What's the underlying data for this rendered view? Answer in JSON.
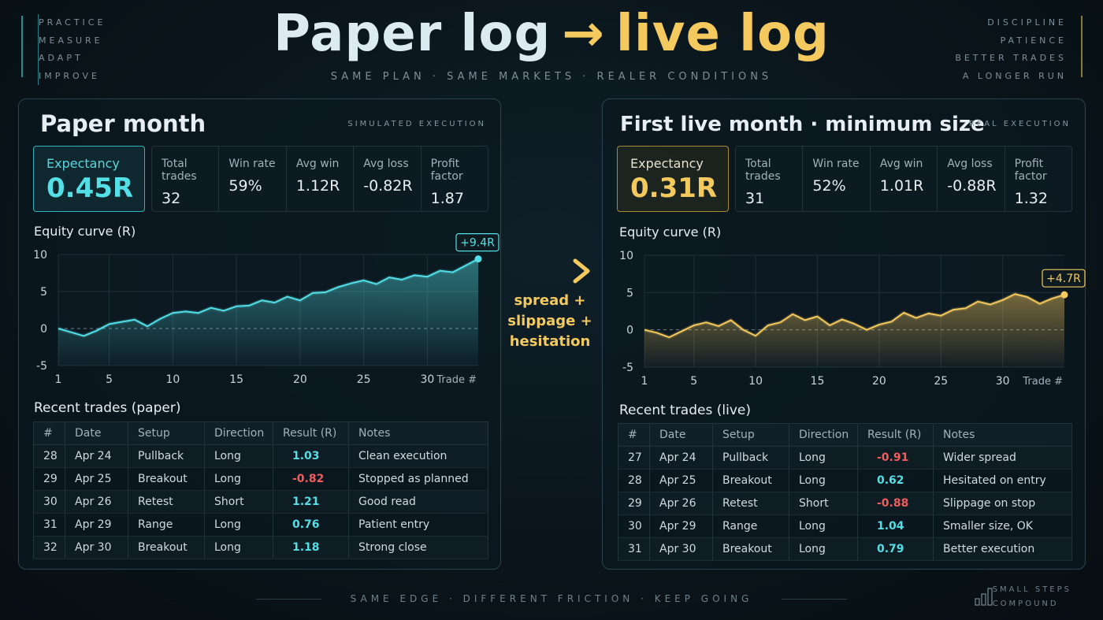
{
  "header": {
    "left_words": [
      "PRACTICE",
      "MEASURE",
      "ADAPT",
      "IMPROVE"
    ],
    "right_words": [
      "DISCIPLINE",
      "PATIENCE",
      "BETTER TRADES",
      "A LONGER RUN"
    ],
    "title_left": "Paper log",
    "title_arrow": "→",
    "title_right": "live log",
    "subtitle": "SAME PLAN · SAME MARKETS · REALER CONDITIONS"
  },
  "paper": {
    "title": "Paper month",
    "tag": "SIMULATED EXECUTION",
    "expectancy_label": "Expectancy",
    "expectancy": "0.45R",
    "stats": [
      {
        "label": "Total trades",
        "value": "32"
      },
      {
        "label": "Win rate",
        "value": "59%"
      },
      {
        "label": "Avg win",
        "value": "1.12R"
      },
      {
        "label": "Avg loss",
        "value": "-0.82R"
      },
      {
        "label": "Profit factor",
        "value": "1.87"
      }
    ],
    "equity_label": "Equity curve (R)",
    "trades_label": "Recent trades (paper)",
    "columns": [
      "#",
      "Date",
      "Setup",
      "Direction",
      "Result (R)",
      "Notes"
    ],
    "trades": [
      {
        "n": "28",
        "date": "Apr 24",
        "setup": "Pullback",
        "dir": "Long",
        "result": "1.03",
        "notes": "Clean execution"
      },
      {
        "n": "29",
        "date": "Apr 25",
        "setup": "Breakout",
        "dir": "Long",
        "result": "-0.82",
        "notes": "Stopped as planned"
      },
      {
        "n": "30",
        "date": "Apr 26",
        "setup": "Retest",
        "dir": "Short",
        "result": "1.21",
        "notes": "Good read"
      },
      {
        "n": "31",
        "date": "Apr 29",
        "setup": "Range",
        "dir": "Long",
        "result": "0.76",
        "notes": "Patient entry"
      },
      {
        "n": "32",
        "date": "Apr 30",
        "setup": "Breakout",
        "dir": "Long",
        "result": "1.18",
        "notes": "Strong close"
      }
    ]
  },
  "live": {
    "title": "First live month · minimum size",
    "tag": "REAL EXECUTION",
    "expectancy_label": "Expectancy",
    "expectancy": "0.31R",
    "stats": [
      {
        "label": "Total trades",
        "value": "31"
      },
      {
        "label": "Win rate",
        "value": "52%"
      },
      {
        "label": "Avg win",
        "value": "1.01R"
      },
      {
        "label": "Avg loss",
        "value": "-0.88R"
      },
      {
        "label": "Profit factor",
        "value": "1.32"
      }
    ],
    "equity_label": "Equity curve (R)",
    "trades_label": "Recent trades (live)",
    "columns": [
      "#",
      "Date",
      "Setup",
      "Direction",
      "Result (R)",
      "Notes"
    ],
    "trades": [
      {
        "n": "27",
        "date": "Apr 24",
        "setup": "Pullback",
        "dir": "Long",
        "result": "-0.91",
        "notes": "Wider spread"
      },
      {
        "n": "28",
        "date": "Apr 25",
        "setup": "Breakout",
        "dir": "Long",
        "result": "0.62",
        "notes": "Hesitated on entry"
      },
      {
        "n": "29",
        "date": "Apr 26",
        "setup": "Retest",
        "dir": "Short",
        "result": "-0.88",
        "notes": "Slippage on stop"
      },
      {
        "n": "30",
        "date": "Apr 29",
        "setup": "Range",
        "dir": "Long",
        "result": "1.04",
        "notes": "Smaller size, OK"
      },
      {
        "n": "31",
        "date": "Apr 30",
        "setup": "Breakout",
        "dir": "Long",
        "result": "0.79",
        "notes": "Better execution"
      }
    ]
  },
  "middle": {
    "friction_lines": [
      "spread +",
      "slippage +",
      "hesitation"
    ]
  },
  "footer": {
    "text": "SAME EDGE · DIFFERENT FRICTION · KEEP GOING",
    "small_steps": [
      "SMALL STEPS",
      "COMPOUND"
    ]
  },
  "colors": {
    "paper_accent": "#53dfe6",
    "live_accent": "#f4c95d",
    "negative": "#f25c5c"
  },
  "chart_data": [
    {
      "type": "line",
      "series_key": "paper",
      "xlabel": "Trade #",
      "ylabel": "",
      "xlim": [
        1,
        34
      ],
      "ylim": [
        -5,
        10
      ],
      "x_ticks": [
        1,
        5,
        10,
        15,
        20,
        25,
        30
      ],
      "y_ticks": [
        -5,
        0,
        5,
        10
      ],
      "end_label": "+9.4R",
      "x": [
        1,
        2,
        3,
        4,
        5,
        6,
        7,
        8,
        9,
        10,
        11,
        12,
        13,
        14,
        15,
        16,
        17,
        18,
        19,
        20,
        21,
        22,
        23,
        24,
        25,
        26,
        27,
        28,
        29,
        30,
        31,
        32,
        33,
        34
      ],
      "values": [
        0,
        -0.5,
        -1,
        -0.3,
        0.6,
        0.9,
        1.2,
        0.3,
        1.3,
        2.1,
        2.3,
        2.1,
        2.8,
        2.4,
        3.0,
        3.1,
        3.8,
        3.5,
        4.3,
        3.8,
        4.8,
        4.9,
        5.6,
        6.1,
        6.5,
        6.0,
        6.9,
        6.6,
        7.2,
        7.0,
        7.8,
        7.6,
        8.5,
        9.4
      ]
    },
    {
      "type": "line",
      "series_key": "live",
      "xlabel": "Trade #",
      "ylabel": "",
      "xlim": [
        1,
        35
      ],
      "ylim": [
        -5,
        10
      ],
      "x_ticks": [
        1,
        5,
        10,
        15,
        20,
        25,
        30
      ],
      "y_ticks": [
        -5,
        0,
        5,
        10
      ],
      "end_label": "+4.7R",
      "x": [
        1,
        2,
        3,
        4,
        5,
        6,
        7,
        8,
        9,
        10,
        11,
        12,
        13,
        14,
        15,
        16,
        17,
        18,
        19,
        20,
        21,
        22,
        23,
        24,
        25,
        26,
        27,
        28,
        29,
        30,
        31,
        32,
        33,
        34,
        35
      ],
      "values": [
        0,
        -0.4,
        -1,
        -0.2,
        0.6,
        1.0,
        0.5,
        1.3,
        0,
        -0.8,
        0.6,
        1.0,
        2.1,
        1.3,
        1.8,
        0.6,
        1.4,
        0.8,
        0,
        0.7,
        1.1,
        2.3,
        1.6,
        2.2,
        1.9,
        2.7,
        2.9,
        3.8,
        3.4,
        4.0,
        4.8,
        4.4,
        3.5,
        4.2,
        4.7
      ]
    }
  ]
}
